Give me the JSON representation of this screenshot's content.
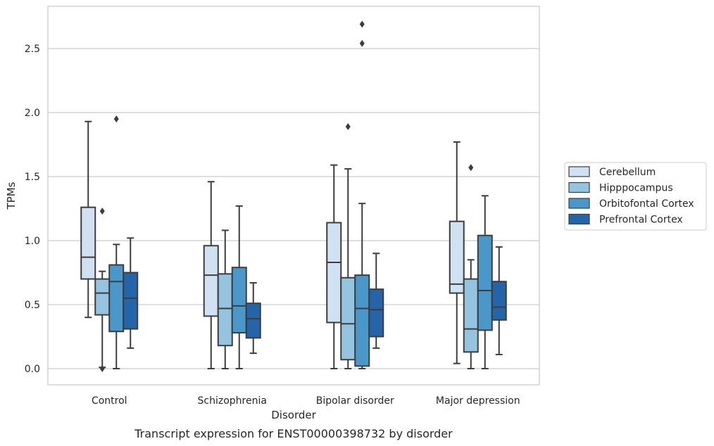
{
  "chart_data": {
    "type": "box",
    "title": "",
    "caption": "Transcript expression for ENST00000398732 by disorder",
    "xlabel": "Disorder",
    "ylabel": "TPMs",
    "ylim": [
      -0.13,
      2.83
    ],
    "yticks": [
      "0.0",
      "0.5",
      "1.0",
      "1.5",
      "2.0",
      "2.5"
    ],
    "ytick_values": [
      0,
      0.5,
      1.0,
      1.5,
      2.0,
      2.5
    ],
    "grid": "horizontal",
    "legend_position": "right",
    "categories": [
      "Control",
      "Schizophrenia",
      "Bipolar disorder",
      "Major depression"
    ],
    "series": [
      {
        "name": "Cerebellum",
        "color": "#d0e1f2",
        "boxes": [
          {
            "whisker_low": 0.4,
            "q1": 0.7,
            "median": 0.87,
            "q3": 1.26,
            "whisker_high": 1.93,
            "outliers": []
          },
          {
            "whisker_low": 0.0,
            "q1": 0.41,
            "median": 0.73,
            "q3": 0.96,
            "whisker_high": 1.46,
            "outliers": []
          },
          {
            "whisker_low": 0.0,
            "q1": 0.36,
            "median": 0.83,
            "q3": 1.14,
            "whisker_high": 1.59,
            "outliers": []
          },
          {
            "whisker_low": 0.04,
            "q1": 0.59,
            "median": 0.66,
            "q3": 1.15,
            "whisker_high": 1.77,
            "outliers": []
          }
        ]
      },
      {
        "name": "Hipppocampus",
        "color": "#94c4df",
        "boxes": [
          {
            "whisker_low": 0.01,
            "q1": 0.42,
            "median": 0.59,
            "q3": 0.7,
            "whisker_high": 0.76,
            "outliers": [
              1.23,
              0.0
            ]
          },
          {
            "whisker_low": 0.0,
            "q1": 0.18,
            "median": 0.47,
            "q3": 0.74,
            "whisker_high": 1.08,
            "outliers": []
          },
          {
            "whisker_low": 0.0,
            "q1": 0.07,
            "median": 0.35,
            "q3": 0.71,
            "whisker_high": 1.56,
            "outliers": [
              1.89
            ]
          },
          {
            "whisker_low": 0.0,
            "q1": 0.13,
            "median": 0.31,
            "q3": 0.7,
            "whisker_high": 0.85,
            "outliers": [
              1.57
            ]
          }
        ]
      },
      {
        "name": "Orbitofontal Cortex",
        "color": "#4a98c9",
        "boxes": [
          {
            "whisker_low": 0.0,
            "q1": 0.29,
            "median": 0.68,
            "q3": 0.81,
            "whisker_high": 0.97,
            "outliers": [
              1.95
            ]
          },
          {
            "whisker_low": 0.0,
            "q1": 0.28,
            "median": 0.49,
            "q3": 0.79,
            "whisker_high": 1.27,
            "outliers": []
          },
          {
            "whisker_low": 0.0,
            "q1": 0.02,
            "median": 0.47,
            "q3": 0.73,
            "whisker_high": 1.29,
            "outliers": [
              2.69,
              2.54
            ]
          },
          {
            "whisker_low": 0.0,
            "q1": 0.3,
            "median": 0.61,
            "q3": 1.04,
            "whisker_high": 1.35,
            "outliers": []
          }
        ]
      },
      {
        "name": "Prefrontal Cortex",
        "color": "#2464a8",
        "boxes": [
          {
            "whisker_low": 0.16,
            "q1": 0.31,
            "median": 0.55,
            "q3": 0.75,
            "whisker_high": 1.02,
            "outliers": []
          },
          {
            "whisker_low": 0.12,
            "q1": 0.24,
            "median": 0.39,
            "q3": 0.51,
            "whisker_high": 0.67,
            "outliers": []
          },
          {
            "whisker_low": 0.16,
            "q1": 0.25,
            "median": 0.46,
            "q3": 0.62,
            "whisker_high": 0.9,
            "outliers": []
          },
          {
            "whisker_low": 0.11,
            "q1": 0.38,
            "median": 0.48,
            "q3": 0.68,
            "whisker_high": 0.95,
            "outliers": []
          }
        ]
      }
    ]
  }
}
